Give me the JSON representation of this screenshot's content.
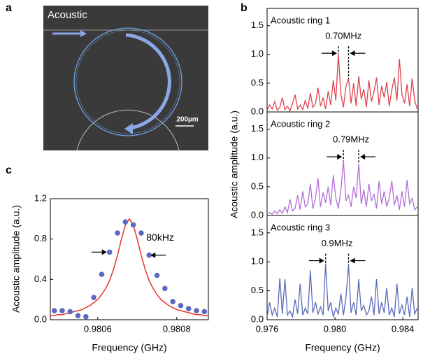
{
  "panels": [
    "a",
    "b",
    "c"
  ],
  "image": {
    "label": "Acoustic",
    "scale_bar": "200µm"
  },
  "chart_data": [
    {
      "type": "line",
      "title": "Acoustic ring 1",
      "annotation": "0.70MHz",
      "ylabel": "Acoustic amplitude (a.u.)",
      "xlim": [
        0.976,
        0.9849
      ],
      "ylim": [
        0,
        1.8
      ],
      "yticks": [
        {
          "value": 0,
          "label": "0.0"
        },
        0.5,
        {
          "value": 1,
          "label": "1.0"
        },
        1.5
      ],
      "series": [
        {
          "color": "#e0414f",
          "x": [
            0.976,
            0.97615,
            0.9763,
            0.97645,
            0.9766,
            0.97675,
            0.9769,
            0.97705,
            0.9772,
            0.97735,
            0.9775,
            0.97765,
            0.9778,
            0.97795,
            0.9781,
            0.97825,
            0.9784,
            0.97855,
            0.9787,
            0.97885,
            0.979,
            0.97915,
            0.9793,
            0.97945,
            0.9796,
            0.97975,
            0.9799,
            0.98005,
            0.9802,
            0.98035,
            0.9805,
            0.98065,
            0.9808,
            0.98095,
            0.9811,
            0.98125,
            0.9814,
            0.98155,
            0.9817,
            0.98185,
            0.982,
            0.98215,
            0.9823,
            0.98245,
            0.9826,
            0.98275,
            0.9829,
            0.98305,
            0.9832,
            0.98335,
            0.9835,
            0.98365,
            0.9838,
            0.98395,
            0.9841,
            0.98425,
            0.9844,
            0.98455,
            0.9847,
            0.98485
          ],
          "values": [
            0.02,
            0.12,
            0.05,
            0.18,
            0.03,
            0.08,
            0.25,
            0.04,
            0.1,
            0.02,
            0.15,
            0.3,
            0.05,
            0.12,
            0.04,
            0.2,
            0.06,
            0.33,
            0.08,
            0.14,
            0.42,
            0.1,
            0.25,
            0.05,
            0.36,
            0.12,
            0.55,
            0.2,
            1.0,
            0.3,
            0.08,
            0.45,
            0.58,
            0.15,
            0.5,
            0.1,
            0.62,
            0.22,
            0.4,
            0.08,
            0.55,
            0.18,
            0.35,
            0.6,
            0.12,
            0.45,
            0.25,
            0.52,
            0.1,
            0.38,
            0.6,
            0.2,
            0.92,
            0.3,
            0.15,
            0.48,
            0.1,
            0.58,
            0.2,
            0.05
          ]
        }
      ]
    },
    {
      "type": "line",
      "title": "Acoustic ring 2",
      "annotation": "0.79MHz",
      "xlim": [
        0.976,
        0.9849
      ],
      "ylim": [
        0,
        1.8
      ],
      "yticks": [
        {
          "value": 0,
          "label": "0.0"
        },
        0.5,
        {
          "value": 1,
          "label": "1.0"
        },
        1.5
      ],
      "series": [
        {
          "color": "#b36fd6",
          "x": [
            0.976,
            0.97615,
            0.9763,
            0.97645,
            0.9766,
            0.97675,
            0.9769,
            0.97705,
            0.9772,
            0.97735,
            0.9775,
            0.97765,
            0.9778,
            0.97795,
            0.9781,
            0.97825,
            0.9784,
            0.97855,
            0.9787,
            0.97885,
            0.979,
            0.97915,
            0.9793,
            0.97945,
            0.9796,
            0.97975,
            0.9799,
            0.98005,
            0.9802,
            0.98035,
            0.9805,
            0.98065,
            0.9808,
            0.98095,
            0.9811,
            0.98125,
            0.9814,
            0.98155,
            0.9817,
            0.98185,
            0.982,
            0.98215,
            0.9823,
            0.98245,
            0.9826,
            0.98275,
            0.9829,
            0.98305,
            0.9832,
            0.98335,
            0.9835,
            0.98365,
            0.9838,
            0.98395,
            0.9841,
            0.98425,
            0.9844,
            0.98455,
            0.9847,
            0.98485
          ],
          "values": [
            0.03,
            0.05,
            0.02,
            0.08,
            0.03,
            0.1,
            0.04,
            0.15,
            0.05,
            0.28,
            0.08,
            0.12,
            0.35,
            0.1,
            0.42,
            0.15,
            0.2,
            0.55,
            0.12,
            0.3,
            0.65,
            0.15,
            0.4,
            0.22,
            0.5,
            0.18,
            0.7,
            0.3,
            0.12,
            0.45,
            0.95,
            0.25,
            0.35,
            0.15,
            0.5,
            0.3,
            0.9,
            0.2,
            0.45,
            0.15,
            0.55,
            0.25,
            0.38,
            0.12,
            0.6,
            0.2,
            0.42,
            0.15,
            0.3,
            0.6,
            0.18,
            0.35,
            0.1,
            0.42,
            0.15,
            0.62,
            0.2,
            0.3,
            0.1,
            0.15
          ]
        }
      ]
    },
    {
      "type": "line",
      "title": "Acoustic ring 3",
      "annotation": "0.9MHz",
      "xlabel": "Frequency (GHz)",
      "xlim": [
        0.976,
        0.9849
      ],
      "ylim": [
        0,
        1.8
      ],
      "xticks": [
        0.976,
        {
          "value": 0.98,
          "label": "0.980"
        },
        0.984
      ],
      "yticks": [
        {
          "value": 0,
          "label": "0.0"
        },
        0.5,
        {
          "value": 1,
          "label": "1.0"
        },
        1.5
      ],
      "series": [
        {
          "color": "#5a6ab8",
          "x": [
            0.976,
            0.97615,
            0.9763,
            0.97645,
            0.9766,
            0.97675,
            0.9769,
            0.97705,
            0.9772,
            0.97735,
            0.9775,
            0.97765,
            0.9778,
            0.97795,
            0.9781,
            0.97825,
            0.9784,
            0.97855,
            0.9787,
            0.97885,
            0.979,
            0.97915,
            0.9793,
            0.97945,
            0.9796,
            0.97975,
            0.9799,
            0.98005,
            0.9802,
            0.98035,
            0.9805,
            0.98065,
            0.9808,
            0.98095,
            0.9811,
            0.98125,
            0.9814,
            0.98155,
            0.9817,
            0.98185,
            0.982,
            0.98215,
            0.9823,
            0.98245,
            0.9826,
            0.98275,
            0.9829,
            0.98305,
            0.9832,
            0.98335,
            0.9835,
            0.98365,
            0.9838,
            0.98395,
            0.9841,
            0.98425,
            0.9844,
            0.98455,
            0.9847,
            0.98485
          ],
          "values": [
            0.05,
            0.3,
            0.08,
            0.2,
            0.05,
            0.72,
            0.1,
            0.7,
            0.08,
            0.15,
            0.05,
            0.35,
            0.1,
            0.62,
            0.08,
            0.2,
            0.1,
            0.85,
            0.12,
            0.3,
            0.1,
            0.22,
            0.08,
            0.97,
            0.15,
            0.3,
            0.05,
            0.2,
            0.1,
            0.45,
            0.08,
            0.4,
            0.95,
            0.12,
            0.3,
            0.08,
            0.7,
            0.15,
            0.25,
            0.08,
            0.15,
            0.4,
            0.08,
            0.7,
            0.1,
            0.3,
            0.12,
            0.55,
            0.08,
            0.2,
            0.05,
            0.62,
            0.1,
            0.25,
            0.08,
            0.4,
            0.05,
            0.55,
            0.1,
            0.2
          ]
        }
      ]
    },
    {
      "type": "scatter",
      "annotation": "80kHz",
      "xlabel": "Frequency (GHz)",
      "ylabel": "Acoustic amplitude (a.u.)",
      "xlim": [
        0.98048,
        0.98088
      ],
      "ylim": [
        0,
        1.2
      ],
      "xticks": [
        0.9806,
        0.9808
      ],
      "yticks": [
        {
          "value": 0,
          "label": "0.0"
        },
        0.4,
        0.8,
        1.2
      ],
      "series": [
        {
          "color": "#5b69c0",
          "x": [
            0.98049,
            0.98051,
            0.98053,
            0.98055,
            0.98057,
            0.98059,
            0.98061,
            0.98063,
            0.98065,
            0.98067,
            0.98069,
            0.98071,
            0.98073,
            0.98075,
            0.98077,
            0.98079,
            0.98081,
            0.98083,
            0.98085,
            0.98087
          ],
          "values": [
            0.09,
            0.09,
            0.08,
            0.04,
            0.03,
            0.22,
            0.45,
            0.67,
            0.86,
            0.97,
            0.94,
            0.86,
            0.64,
            0.44,
            0.31,
            0.18,
            0.14,
            0.11,
            0.09,
            0.08
          ]
        }
      ],
      "fit": {
        "color": "#e8332a",
        "x": [
          0.98048,
          0.98049,
          0.9805,
          0.98051,
          0.98052,
          0.98053,
          0.98054,
          0.98055,
          0.98056,
          0.98057,
          0.98058,
          0.98059,
          0.9806,
          0.98061,
          0.98062,
          0.98063,
          0.98064,
          0.98065,
          0.98066,
          0.98067,
          0.98068,
          0.98069,
          0.9807,
          0.98071,
          0.98072,
          0.98073,
          0.98074,
          0.98075,
          0.98076,
          0.98077,
          0.98078,
          0.98079,
          0.9808,
          0.98081,
          0.98082,
          0.98083,
          0.98084,
          0.98085,
          0.98086,
          0.98087,
          0.98088
        ],
        "values": [
          0.04,
          0.04,
          0.05,
          0.05,
          0.06,
          0.07,
          0.08,
          0.09,
          0.1,
          0.12,
          0.14,
          0.17,
          0.2,
          0.25,
          0.31,
          0.39,
          0.5,
          0.64,
          0.8,
          0.94,
          1.0,
          0.94,
          0.8,
          0.64,
          0.5,
          0.39,
          0.31,
          0.25,
          0.2,
          0.17,
          0.14,
          0.12,
          0.1,
          0.09,
          0.08,
          0.07,
          0.06,
          0.05,
          0.05,
          0.04,
          0.04
        ]
      }
    }
  ]
}
